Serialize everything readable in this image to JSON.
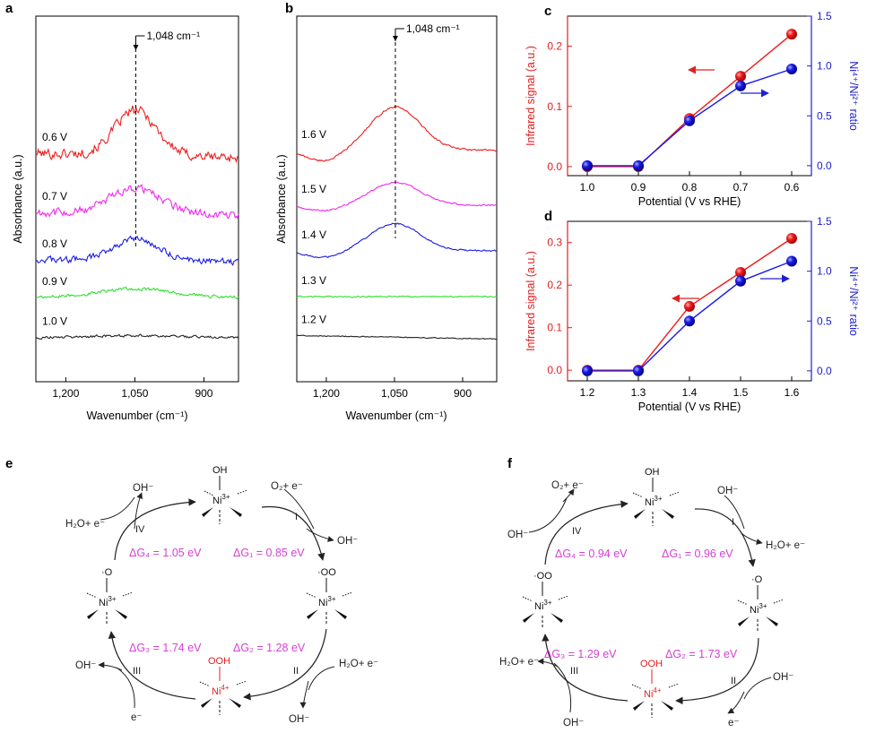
{
  "colors": {
    "red": "#ee1c1c",
    "magenta": "#ee28ee",
    "blue": "#1a1ae6",
    "green": "#2ee02e",
    "black": "#222222",
    "axis_left_red": "#e02020",
    "axis_right_blue": "#2020d0",
    "delta_g": "#d63fd6"
  },
  "panels": {
    "a": "a",
    "b": "b",
    "c": "c",
    "d": "d",
    "e": "e",
    "f": "f"
  },
  "peak_label": "1,048 cm⁻¹",
  "chart_data": [
    {
      "panel": "a",
      "type": "line",
      "title": "",
      "xlabel": "Wavenumber (cm⁻¹)",
      "ylabel": "Absorbance (a.u.)",
      "xlim": [
        1265,
        825
      ],
      "xticks": [
        "1,200",
        "1,050",
        "900"
      ],
      "xtick_values": [
        1200,
        1050,
        900
      ],
      "peak_x": 1048,
      "series": [
        {
          "name": "0.6 V",
          "color": "red",
          "offset": 4.0,
          "amp": 0.95,
          "width": 45,
          "noise": 0.16,
          "slope": -0.08
        },
        {
          "name": "0.7 V",
          "color": "magenta",
          "offset": 2.75,
          "amp": 0.55,
          "width": 55,
          "noise": 0.13,
          "slope": -0.05
        },
        {
          "name": "0.8 V",
          "color": "blue",
          "offset": 1.75,
          "amp": 0.45,
          "width": 50,
          "noise": 0.1,
          "slope": -0.04
        },
        {
          "name": "0.9 V",
          "color": "green",
          "offset": 0.95,
          "amp": 0.18,
          "width": 80,
          "noise": 0.05,
          "slope": 0.0
        },
        {
          "name": "1.0 V",
          "color": "black",
          "offset": 0.1,
          "amp": 0.04,
          "width": 100,
          "noise": 0.04,
          "slope": 0.0
        }
      ]
    },
    {
      "panel": "b",
      "type": "line",
      "title": "",
      "xlabel": "Wavenumber (cm⁻¹)",
      "ylabel": "Absorbance (a.u.)",
      "xlim": [
        1265,
        825
      ],
      "xticks": [
        "1,200",
        "1,050",
        "900"
      ],
      "xtick_values": [
        1200,
        1050,
        900
      ],
      "peak_x": 1048,
      "series": [
        {
          "name": "1.6 V",
          "color": "red",
          "offset": 4.2,
          "amp": 0.95,
          "width": 55,
          "noise": 0.03,
          "slope": 0.0
        },
        {
          "name": "1.5 V",
          "color": "magenta",
          "offset": 3.0,
          "amp": 0.5,
          "width": 55,
          "noise": 0.025,
          "slope": 0.0
        },
        {
          "name": "1.4 V",
          "color": "blue",
          "offset": 2.0,
          "amp": 0.6,
          "width": 55,
          "noise": 0.025,
          "slope": 0.0
        },
        {
          "name": "1.3 V",
          "color": "green",
          "offset": 1.0,
          "amp": 0.0,
          "width": 60,
          "noise": 0.02,
          "slope": 0.0
        },
        {
          "name": "1.2 V",
          "color": "black",
          "offset": 0.15,
          "amp": 0.0,
          "width": 60,
          "noise": 0.015,
          "slope": -0.08
        }
      ]
    },
    {
      "panel": "c",
      "type": "line",
      "xlabel": "Potential (V vs RHE)",
      "ylabel_left": "Infrared signal (a.u.)",
      "ylabel_right": "Ni⁴⁺/Ni²⁺ ratio",
      "categories": [
        "1.0",
        "0.9",
        "0.8",
        "0.7",
        "0.6"
      ],
      "ylim_left": [
        -0.015,
        0.25
      ],
      "ylim_right": [
        -0.1,
        1.5
      ],
      "yticks_left": [
        "0.0",
        "0.1",
        "0.2"
      ],
      "yticks_left_values": [
        0.0,
        0.1,
        0.2
      ],
      "yticks_right": [
        "0.0",
        "0.5",
        "1.0",
        "1.5"
      ],
      "yticks_right_values": [
        0.0,
        0.5,
        1.0,
        1.5
      ],
      "series": [
        {
          "name": "Infrared signal",
          "axis": "left",
          "color": "red",
          "values": [
            0.0,
            0.0,
            0.08,
            0.15,
            0.22
          ]
        },
        {
          "name": "Ni4+/Ni2+ ratio",
          "axis": "right",
          "color": "blue",
          "values": [
            0.0,
            0.0,
            0.45,
            0.8,
            0.97
          ]
        }
      ]
    },
    {
      "panel": "d",
      "type": "line",
      "xlabel": "Potential (V vs RHE)",
      "ylabel_left": "Infrared signal (a.u.)",
      "ylabel_right": "Ni⁴⁺/Ni²⁺ ratio",
      "categories": [
        "1.2",
        "1.3",
        "1.4",
        "1.5",
        "1.6"
      ],
      "ylim_left": [
        -0.025,
        0.35
      ],
      "ylim_right": [
        -0.1,
        1.5
      ],
      "yticks_left": [
        "0.0",
        "0.1",
        "0.2",
        "0.3"
      ],
      "yticks_left_values": [
        0.0,
        0.1,
        0.2,
        0.3
      ],
      "yticks_right": [
        "0.0",
        "0.5",
        "1.0",
        "1.5"
      ],
      "yticks_right_values": [
        0.0,
        0.5,
        1.0,
        1.5
      ],
      "series": [
        {
          "name": "Infrared signal",
          "axis": "left",
          "color": "red",
          "values": [
            0.0,
            0.0,
            0.15,
            0.23,
            0.31
          ]
        },
        {
          "name": "Ni4+/Ni2+ ratio",
          "axis": "right",
          "color": "blue",
          "values": [
            0.0,
            0.0,
            0.5,
            0.9,
            1.1
          ]
        }
      ]
    }
  ],
  "cycle_e": {
    "top_species": {
      "group": "OH",
      "metal": "Ni",
      "charge": "3+"
    },
    "left_species": {
      "group": "·O",
      "metal": "Ni",
      "charge": "3+"
    },
    "right_species": {
      "group": "·OO",
      "metal": "Ni",
      "charge": "3+"
    },
    "bottom_species": {
      "group": "OOH",
      "metal": "Ni",
      "charge": "4+"
    },
    "steps": [
      "I",
      "II",
      "III",
      "IV"
    ],
    "reactants": {
      "s1_in": "O₂+ e⁻",
      "s1_out": "OH⁻",
      "s2_in": "H₂O+ e⁻",
      "s2_out": "OH⁻",
      "s3_in": "e⁻",
      "s3_out": "OH⁻",
      "s4_in": "H₂O+ e⁻",
      "s4_out": "OH⁻"
    },
    "dG1": "ΔG₁ = 0.85 eV",
    "dG2": "ΔG₂ = 1.28 eV",
    "dG3": "ΔG₃ = 1.74 eV",
    "dG4": "ΔG₄ = 1.05 eV"
  },
  "cycle_f": {
    "top_species": {
      "group": "OH",
      "metal": "Ni",
      "charge": "3+"
    },
    "left_species": {
      "group": "·OO",
      "metal": "Ni",
      "charge": "3+"
    },
    "right_species": {
      "group": "·O",
      "metal": "Ni",
      "charge": "3+"
    },
    "bottom_species": {
      "group": "OOH",
      "metal": "Ni",
      "charge": "4+"
    },
    "steps": [
      "I",
      "II",
      "III",
      "IV"
    ],
    "reactants": {
      "s1_in": "OH⁻",
      "s1_out": "H₂O+ e⁻",
      "s2_in": "OH⁻",
      "s2_out": "e⁻",
      "s3_in": "OH⁻",
      "s3_out": "H₂O+ e⁻",
      "s4_in": "OH⁻",
      "s4_out": "O₂+ e⁻"
    },
    "dG1": "ΔG₁ = 0.96 eV",
    "dG2": "ΔG₂ = 1.73 eV",
    "dG3": "ΔG₃ = 1.29 eV",
    "dG4": "ΔG₄ = 0.94 eV"
  }
}
